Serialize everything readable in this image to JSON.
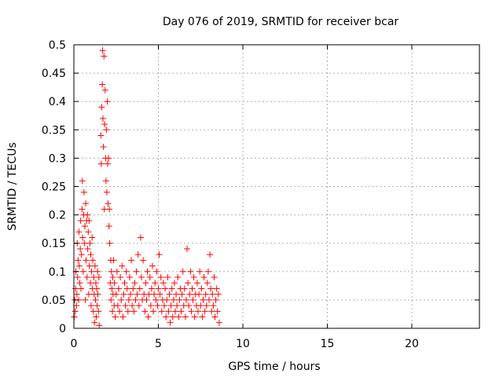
{
  "chart_data": {
    "type": "scatter",
    "title": "Day 076 of 2019, SRMTID for receiver bcar",
    "xlabel": "GPS time / hours",
    "ylabel": "SRMTID / TECUs",
    "xlim": [
      0,
      24
    ],
    "ylim": [
      0,
      0.5
    ],
    "xticks": [
      0,
      5,
      10,
      15,
      20
    ],
    "xtick_labels": [
      "0",
      "5",
      "10",
      "15",
      "20"
    ],
    "yticks": [
      0,
      0.05,
      0.1,
      0.15,
      0.2,
      0.25,
      0.3,
      0.35,
      0.4,
      0.45,
      0.5
    ],
    "ytick_labels": [
      "0",
      "0.05",
      "0.1",
      "0.15",
      "0.2",
      "0.25",
      "0.3",
      "0.35",
      "0.4",
      "0.45",
      "0.5"
    ],
    "grid": true,
    "marker": "+",
    "color": "#ff0000",
    "series": [
      {
        "points": [
          [
            0.02,
            0.02
          ],
          [
            0.05,
            0.05
          ],
          [
            0.08,
            0.03
          ],
          [
            0.1,
            0.07
          ],
          [
            0.12,
            0.1
          ],
          [
            0.15,
            0.04
          ],
          [
            0.18,
            0.06
          ],
          [
            0.2,
            0.15
          ],
          [
            0.22,
            0.09
          ],
          [
            0.25,
            0.12
          ],
          [
            0.28,
            0.05
          ],
          [
            0.3,
            0.17
          ],
          [
            0.32,
            0.11
          ],
          [
            0.35,
            0.08
          ],
          [
            0.38,
            0.14
          ],
          [
            0.4,
            0.19
          ],
          [
            0.42,
            0.07
          ],
          [
            0.45,
            0.13
          ],
          [
            0.48,
            0.21
          ],
          [
            0.5,
            0.26
          ],
          [
            0.52,
            0.16
          ],
          [
            0.55,
            0.1
          ],
          [
            0.58,
            0.2
          ],
          [
            0.6,
            0.24
          ],
          [
            0.62,
            0.15
          ],
          [
            0.65,
            0.18
          ],
          [
            0.68,
            0.05
          ],
          [
            0.7,
            0.22
          ],
          [
            0.72,
            0.12
          ],
          [
            0.75,
            0.19
          ],
          [
            0.78,
            0.09
          ],
          [
            0.8,
            0.2
          ],
          [
            0.82,
            0.14
          ],
          [
            0.85,
            0.17
          ],
          [
            0.88,
            0.06
          ],
          [
            0.9,
            0.19
          ],
          [
            0.92,
            0.11
          ],
          [
            0.95,
            0.15
          ],
          [
            0.98,
            0.08
          ],
          [
            1.0,
            0.13
          ],
          [
            1.02,
            0.04
          ],
          [
            1.05,
            0.1
          ],
          [
            1.08,
            0.16
          ],
          [
            1.1,
            0.07
          ],
          [
            1.12,
            0.12
          ],
          [
            1.15,
            0.03
          ],
          [
            1.18,
            0.09
          ],
          [
            1.2,
            0.06
          ],
          [
            1.22,
            0.01
          ],
          [
            1.25,
            0.11
          ],
          [
            1.28,
            0.05
          ],
          [
            1.3,
            0.08
          ],
          [
            1.32,
            0.02
          ],
          [
            1.35,
            0.07
          ],
          [
            1.38,
            0.04
          ],
          [
            1.4,
            0.1
          ],
          [
            1.42,
            0.06
          ],
          [
            1.45,
            0.03
          ],
          [
            1.48,
            0.09
          ],
          [
            1.5,
            0.005
          ],
          [
            1.6,
            0.34
          ],
          [
            1.62,
            0.29
          ],
          [
            1.65,
            0.39
          ],
          [
            1.68,
            0.43
          ],
          [
            1.7,
            0.49
          ],
          [
            1.72,
            0.37
          ],
          [
            1.75,
            0.32
          ],
          [
            1.78,
            0.48
          ],
          [
            1.8,
            0.21
          ],
          [
            1.82,
            0.36
          ],
          [
            1.85,
            0.42
          ],
          [
            1.88,
            0.3
          ],
          [
            1.9,
            0.26
          ],
          [
            1.92,
            0.35
          ],
          [
            1.95,
            0.24
          ],
          [
            1.98,
            0.4
          ],
          [
            2.0,
            0.29
          ],
          [
            2.02,
            0.22
          ],
          [
            2.05,
            0.3
          ],
          [
            2.08,
            0.18
          ],
          [
            2.1,
            0.21
          ],
          [
            2.12,
            0.15
          ],
          [
            2.15,
            0.08
          ],
          [
            2.18,
            0.12
          ],
          [
            2.2,
            0.05
          ],
          [
            2.22,
            0.1
          ],
          [
            2.25,
            0.07
          ],
          [
            2.28,
            0.03
          ],
          [
            2.3,
            0.09
          ],
          [
            2.32,
            0.06
          ],
          [
            2.35,
            0.12
          ],
          [
            2.38,
            0.04
          ],
          [
            2.4,
            0.08
          ],
          [
            2.45,
            0.02
          ],
          [
            2.5,
            0.06
          ],
          [
            2.55,
            0.1
          ],
          [
            2.6,
            0.04
          ],
          [
            2.65,
            0.07
          ],
          [
            2.7,
            0.03
          ],
          [
            2.75,
            0.09
          ],
          [
            2.8,
            0.05
          ],
          [
            2.85,
            0.11
          ],
          [
            2.9,
            0.02
          ],
          [
            2.95,
            0.06
          ],
          [
            3.0,
            0.08
          ],
          [
            3.05,
            0.04
          ],
          [
            3.1,
            0.1
          ],
          [
            3.15,
            0.07
          ],
          [
            3.2,
            0.03
          ],
          [
            3.25,
            0.05
          ],
          [
            3.3,
            0.09
          ],
          [
            3.35,
            0.06
          ],
          [
            3.4,
            0.12
          ],
          [
            3.45,
            0.04
          ],
          [
            3.5,
            0.07
          ],
          [
            3.55,
            0.03
          ],
          [
            3.6,
            0.08
          ],
          [
            3.65,
            0.05
          ],
          [
            3.7,
            0.1
          ],
          [
            3.75,
            0.06
          ],
          [
            3.8,
            0.13
          ],
          [
            3.85,
            0.04
          ],
          [
            3.9,
            0.07
          ],
          [
            3.95,
            0.16
          ],
          [
            4.0,
            0.09
          ],
          [
            4.05,
            0.05
          ],
          [
            4.1,
            0.12
          ],
          [
            4.15,
            0.06
          ],
          [
            4.2,
            0.03
          ],
          [
            4.25,
            0.08
          ],
          [
            4.3,
            0.05
          ],
          [
            4.35,
            0.1
          ],
          [
            4.4,
            0.02
          ],
          [
            4.45,
            0.06
          ],
          [
            4.5,
            0.09
          ],
          [
            4.55,
            0.04
          ],
          [
            4.6,
            0.07
          ],
          [
            4.65,
            0.11
          ],
          [
            4.7,
            0.03
          ],
          [
            4.75,
            0.06
          ],
          [
            4.8,
            0.08
          ],
          [
            4.85,
            0.05
          ],
          [
            4.9,
            0.1
          ],
          [
            4.95,
            0.04
          ],
          [
            5.0,
            0.07
          ],
          [
            5.05,
            0.13
          ],
          [
            5.1,
            0.06
          ],
          [
            5.15,
            0.09
          ],
          [
            5.2,
            0.03
          ],
          [
            5.25,
            0.05
          ],
          [
            5.3,
            0.08
          ],
          [
            5.35,
            0.04
          ],
          [
            5.4,
            0.07
          ],
          [
            5.45,
            0.02
          ],
          [
            5.5,
            0.05
          ],
          [
            5.55,
            0.09
          ],
          [
            5.6,
            0.03
          ],
          [
            5.65,
            0.06
          ],
          [
            5.7,
            0.01
          ],
          [
            5.75,
            0.04
          ],
          [
            5.8,
            0.07
          ],
          [
            5.85,
            0.02
          ],
          [
            5.9,
            0.05
          ],
          [
            5.95,
            0.08
          ],
          [
            6.0,
            0.03
          ],
          [
            6.05,
            0.06
          ],
          [
            6.1,
            0.04
          ],
          [
            6.15,
            0.09
          ],
          [
            6.2,
            0.02
          ],
          [
            6.25,
            0.05
          ],
          [
            6.3,
            0.07
          ],
          [
            6.35,
            0.03
          ],
          [
            6.4,
            0.06
          ],
          [
            6.45,
            0.1
          ],
          [
            6.5,
            0.04
          ],
          [
            6.55,
            0.07
          ],
          [
            6.6,
            0.02
          ],
          [
            6.65,
            0.05
          ],
          [
            6.7,
            0.14
          ],
          [
            6.75,
            0.08
          ],
          [
            6.8,
            0.04
          ],
          [
            6.85,
            0.06
          ],
          [
            6.9,
            0.1
          ],
          [
            6.95,
            0.03
          ],
          [
            7.0,
            0.07
          ],
          [
            7.05,
            0.05
          ],
          [
            7.1,
            0.09
          ],
          [
            7.15,
            0.02
          ],
          [
            7.2,
            0.06
          ],
          [
            7.25,
            0.04
          ],
          [
            7.3,
            0.08
          ],
          [
            7.35,
            0.03
          ],
          [
            7.4,
            0.06
          ],
          [
            7.45,
            0.1
          ],
          [
            7.5,
            0.04
          ],
          [
            7.55,
            0.07
          ],
          [
            7.6,
            0.02
          ],
          [
            7.65,
            0.05
          ],
          [
            7.7,
            0.09
          ],
          [
            7.75,
            0.03
          ],
          [
            7.8,
            0.06
          ],
          [
            7.85,
            0.04
          ],
          [
            7.9,
            0.08
          ],
          [
            7.95,
            0.1
          ],
          [
            8.0,
            0.05
          ],
          [
            8.05,
            0.13
          ],
          [
            8.1,
            0.07
          ],
          [
            8.15,
            0.03
          ],
          [
            8.2,
            0.06
          ],
          [
            8.25,
            0.04
          ],
          [
            8.3,
            0.09
          ],
          [
            8.35,
            0.02
          ],
          [
            8.4,
            0.05
          ],
          [
            8.45,
            0.07
          ],
          [
            8.5,
            0.03
          ],
          [
            8.55,
            0.06
          ],
          [
            8.6,
            0.01
          ]
        ]
      }
    ]
  }
}
